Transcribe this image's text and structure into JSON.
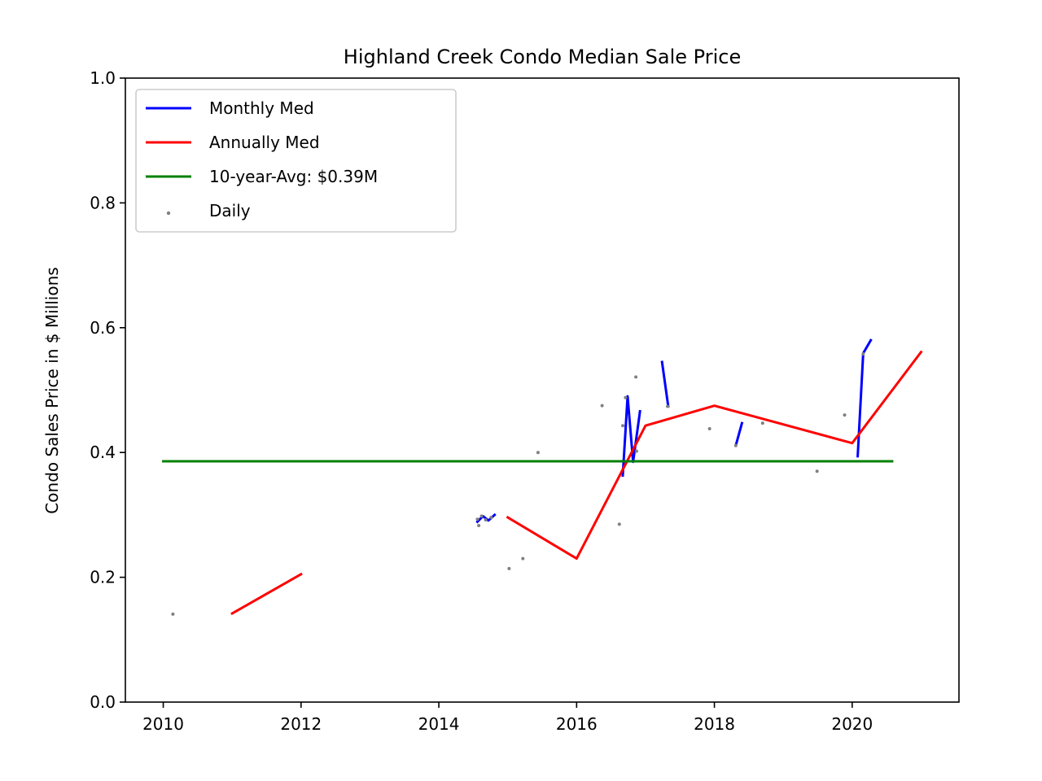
{
  "chart_data": {
    "type": "line",
    "title": "Highland Creek Condo Median Sale Price",
    "xlabel": "",
    "ylabel": "Condo Sales Price in $ Millions",
    "xlim": [
      2009.45,
      2021.55
    ],
    "ylim": [
      0.0,
      1.0
    ],
    "x_ticks": [
      2010,
      2012,
      2014,
      2016,
      2018,
      2020
    ],
    "y_ticks": [
      0.0,
      0.2,
      0.4,
      0.6,
      0.8,
      1.0
    ],
    "y_tick_labels": [
      "0.0",
      "0.2",
      "0.4",
      "0.6",
      "0.8",
      "1.0"
    ],
    "grid": false,
    "legend_position": "top-left",
    "series": [
      {
        "name": "Monthly Med",
        "kind": "line",
        "color": "#0000ff",
        "segments": [
          [
            [
              2014.56,
              0.289
            ],
            [
              2014.64,
              0.298
            ],
            [
              2014.72,
              0.291
            ],
            [
              2014.81,
              0.3
            ]
          ],
          [
            [
              2016.67,
              0.363
            ],
            [
              2016.74,
              0.49
            ],
            [
              2016.82,
              0.385
            ],
            [
              2016.92,
              0.466
            ]
          ],
          [
            [
              2017.24,
              0.545
            ],
            [
              2017.33,
              0.474
            ]
          ],
          [
            [
              2018.31,
              0.411
            ],
            [
              2018.4,
              0.447
            ]
          ],
          [
            [
              2020.08,
              0.394
            ],
            [
              2020.16,
              0.559
            ],
            [
              2020.27,
              0.58
            ]
          ]
        ]
      },
      {
        "name": "Annually Med",
        "kind": "line",
        "color": "#ff0000",
        "segments": [
          [
            [
              2011.0,
              0.142
            ],
            [
              2012.0,
              0.205
            ]
          ],
          [
            [
              2015.0,
              0.296
            ],
            [
              2016.0,
              0.23
            ],
            [
              2017.0,
              0.443
            ],
            [
              2018.0,
              0.475
            ],
            [
              2020.0,
              0.415
            ],
            [
              2021.0,
              0.561
            ]
          ]
        ]
      },
      {
        "name": "10-year-Avg: $0.39M",
        "kind": "line",
        "color": "#008000",
        "segments": [
          [
            [
              2010.0,
              0.386
            ],
            [
              2020.58,
              0.386
            ]
          ]
        ]
      },
      {
        "name": "Daily",
        "kind": "scatter",
        "color": "#808080",
        "points": [
          [
            2010.14,
            0.141
          ],
          [
            2014.56,
            0.293
          ],
          [
            2014.58,
            0.283
          ],
          [
            2014.62,
            0.298
          ],
          [
            2014.68,
            0.292
          ],
          [
            2014.76,
            0.296
          ],
          [
            2015.02,
            0.214
          ],
          [
            2015.22,
            0.23
          ],
          [
            2015.44,
            0.4
          ],
          [
            2016.37,
            0.475
          ],
          [
            2016.62,
            0.285
          ],
          [
            2016.67,
            0.443
          ],
          [
            2016.71,
            0.488
          ],
          [
            2016.86,
            0.521
          ],
          [
            2016.87,
            0.402
          ],
          [
            2017.32,
            0.474
          ],
          [
            2017.93,
            0.438
          ],
          [
            2018.31,
            0.411
          ],
          [
            2018.7,
            0.447
          ],
          [
            2019.49,
            0.37
          ],
          [
            2019.89,
            0.46
          ],
          [
            2020.16,
            0.558
          ]
        ]
      }
    ]
  }
}
